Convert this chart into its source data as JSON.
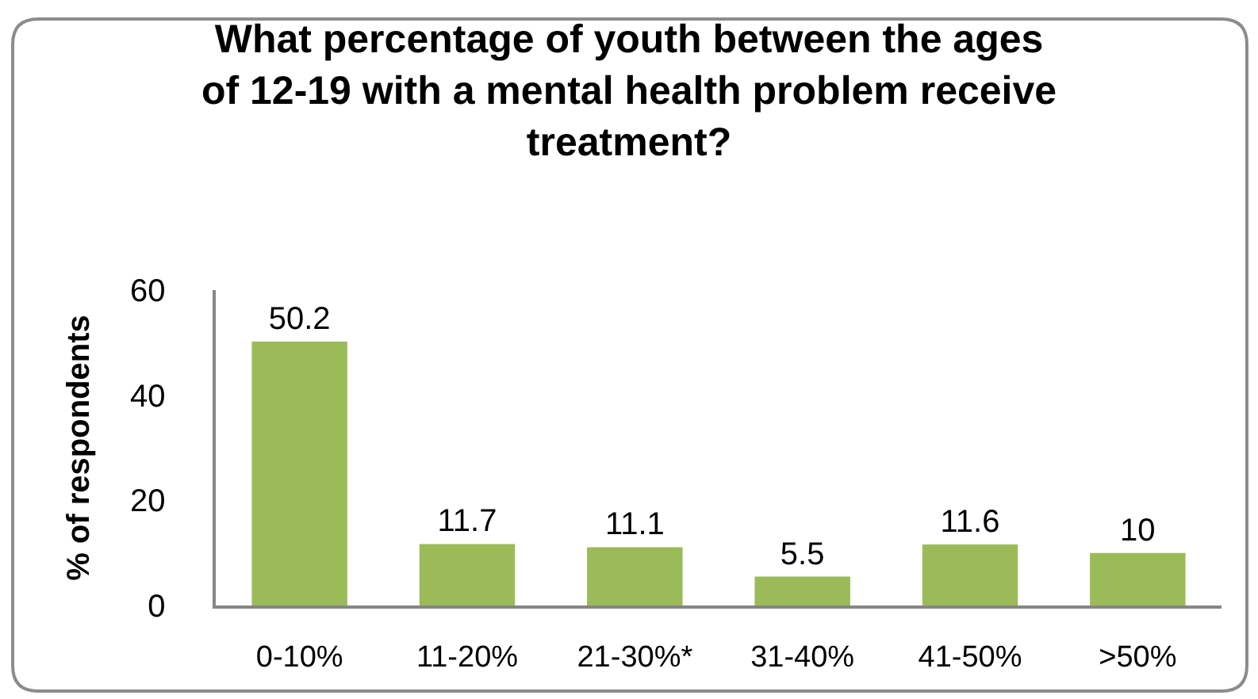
{
  "chart_data": {
    "type": "bar",
    "title": "What percentage of youth between the ages\nof 12-19 with a mental health problem receive\ntreatment?",
    "ylabel": "% of respondents",
    "categories": [
      "0-10%",
      "11-20%",
      "21-30%*",
      "31-40%",
      "41-50%",
      ">50%"
    ],
    "values": [
      50.2,
      11.7,
      11.1,
      5.5,
      11.6,
      10
    ],
    "color": "#9bbb59",
    "ylim": [
      0,
      60
    ],
    "yticks": [
      0,
      20,
      40,
      60
    ],
    "data_labels": true
  }
}
